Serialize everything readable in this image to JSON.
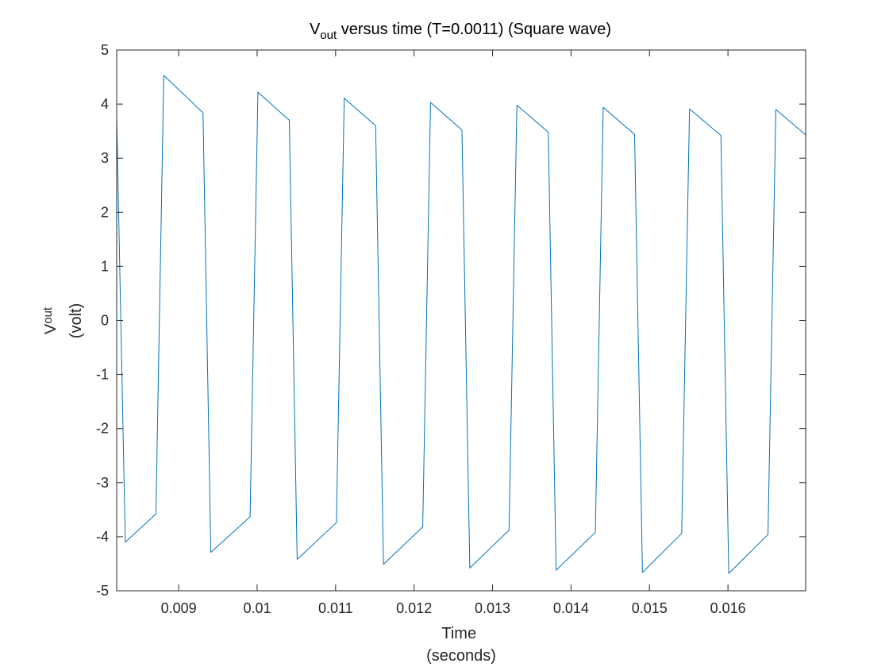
{
  "chart_data": {
    "type": "line",
    "title": {
      "main": "V",
      "sub": "out",
      "rest": " versus time (T=0.0011) (Square wave)"
    },
    "xlabel": {
      "line1": "Time",
      "line2": "(seconds)"
    },
    "ylabel": {
      "main": "V",
      "sub": "out",
      "line2": "(volt)"
    },
    "xlim": [
      0.00821,
      0.01699
    ],
    "ylim": [
      -5,
      5
    ],
    "grid": false,
    "box": true,
    "x_ticks": [
      {
        "value": 0.009,
        "label": "0.009"
      },
      {
        "value": 0.01,
        "label": "0.01"
      },
      {
        "value": 0.011,
        "label": "0.011"
      },
      {
        "value": 0.012,
        "label": "0.012"
      },
      {
        "value": 0.013,
        "label": "0.013"
      },
      {
        "value": 0.014,
        "label": "0.014"
      },
      {
        "value": 0.015,
        "label": "0.015"
      },
      {
        "value": 0.016,
        "label": "0.016"
      }
    ],
    "y_ticks": [
      {
        "value": 5,
        "label": "5"
      },
      {
        "value": 4,
        "label": "4"
      },
      {
        "value": 3,
        "label": "3"
      },
      {
        "value": 2,
        "label": "2"
      },
      {
        "value": 1,
        "label": "1"
      },
      {
        "value": 0,
        "label": "0"
      },
      {
        "value": -1,
        "label": "-1"
      },
      {
        "value": -2,
        "label": "-2"
      },
      {
        "value": -3,
        "label": "-3"
      },
      {
        "value": -4,
        "label": "-4"
      },
      {
        "value": -5,
        "label": "-5"
      }
    ],
    "series": [
      {
        "color": "#0072bd",
        "x": [
          0.00821,
          0.00832,
          0.00871,
          0.00881,
          0.00931,
          0.00941,
          0.00991,
          0.01001,
          0.01041,
          0.01051,
          0.01101,
          0.01111,
          0.01151,
          0.01161,
          0.01211,
          0.01221,
          0.01261,
          0.01271,
          0.01321,
          0.01331,
          0.01371,
          0.01381,
          0.01431,
          0.01441,
          0.01481,
          0.01491,
          0.01541,
          0.01551,
          0.01591,
          0.01601,
          0.01651,
          0.01661,
          0.01699
        ],
        "y": [
          3.77,
          -4.1,
          -3.58,
          4.53,
          3.84,
          -4.29,
          -3.63,
          4.22,
          3.7,
          -4.42,
          -3.74,
          4.11,
          3.6,
          -4.51,
          -3.82,
          4.03,
          3.52,
          -4.58,
          -3.88,
          3.98,
          3.48,
          -4.62,
          -3.92,
          3.94,
          3.44,
          -4.66,
          -3.94,
          3.91,
          3.42,
          -4.68,
          -3.96,
          3.9,
          3.43
        ]
      }
    ]
  }
}
